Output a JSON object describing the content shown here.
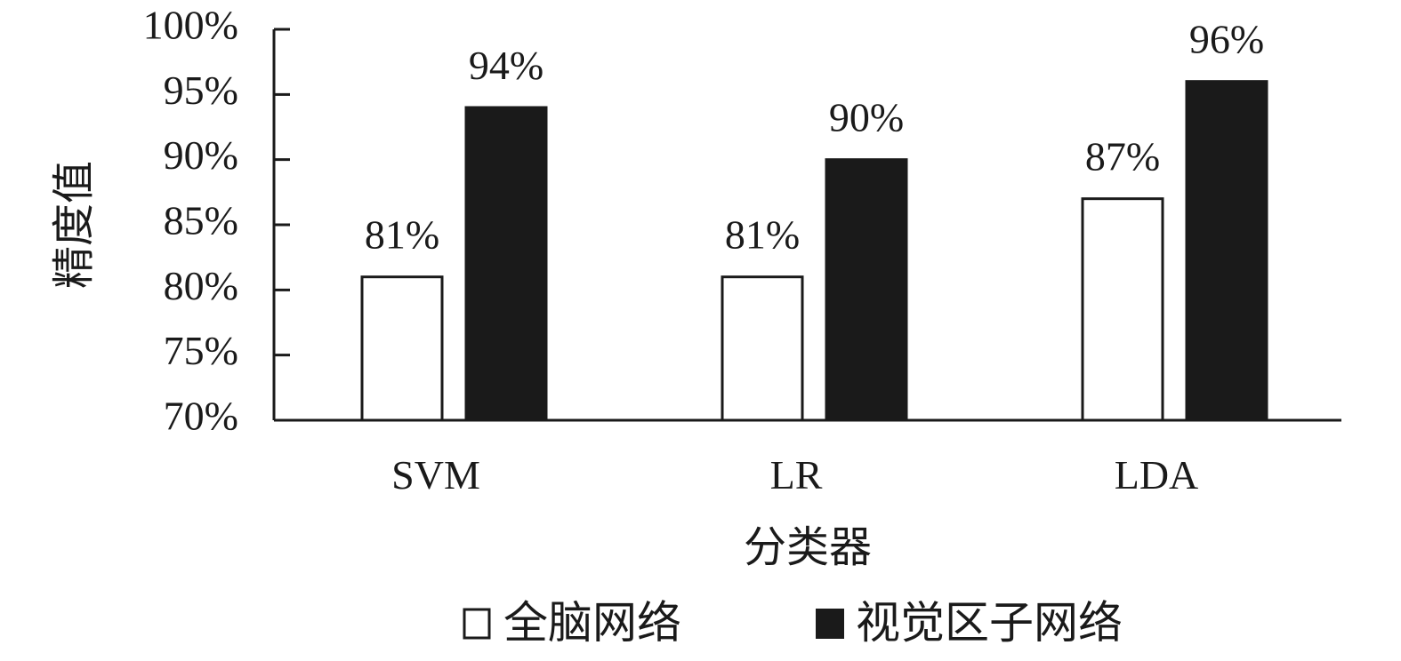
{
  "chart_data": {
    "type": "bar",
    "title": "",
    "xlabel": "分类器",
    "ylabel": "精度值",
    "categories": [
      "SVM",
      "LR",
      "LDA"
    ],
    "series": [
      {
        "name": "全脑网络",
        "values": [
          81,
          81,
          87
        ],
        "labels": [
          "81%",
          "81%",
          "87%"
        ],
        "color": "#ffffff",
        "stroke": "#1a1a1a"
      },
      {
        "name": "视觉区子网络",
        "values": [
          94,
          90,
          96
        ],
        "labels": [
          "94%",
          "90%",
          "96%"
        ],
        "color": "#1a1a1a",
        "stroke": "#1a1a1a"
      }
    ],
    "ylim": [
      70,
      100
    ],
    "yticks": [
      70,
      75,
      80,
      85,
      90,
      95,
      100
    ],
    "ytick_labels": [
      "70%",
      "75%",
      "80%",
      "85%",
      "90%",
      "95%",
      "100%"
    ],
    "grid": false,
    "legend_position": "bottom"
  }
}
